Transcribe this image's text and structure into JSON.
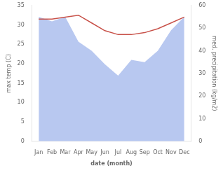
{
  "chart_data": {
    "type": "line",
    "xlabel": "date (month)",
    "ylabel": "max temp (C)",
    "y2label": "med. precipitation (kg/m2)",
    "categories": [
      "Jan",
      "Feb",
      "Mar",
      "Apr",
      "May",
      "Jun",
      "Jul",
      "Aug",
      "Sep",
      "Oct",
      "Nov",
      "Dec"
    ],
    "series": [
      {
        "type": "area",
        "color": "#b8c8f0",
        "axis": "y2",
        "values": [
          55.0,
          53.0,
          55.0,
          44.0,
          40.0,
          34.0,
          29.0,
          36.0,
          35.0,
          40.0,
          49.0,
          55.0
        ]
      },
      {
        "type": "line",
        "color": "#c8524a",
        "values": [
          31.5,
          31.5,
          32.0,
          32.5,
          30.5,
          28.5,
          27.5,
          27.5,
          28.0,
          29.0,
          30.5,
          32.0
        ]
      }
    ],
    "ylim": [
      0,
      35
    ],
    "yticks": [
      0,
      5,
      10,
      15,
      20,
      25,
      30,
      35
    ],
    "y2lim": [
      0,
      60
    ],
    "y2ticks": [
      0,
      10,
      20,
      30,
      40,
      50,
      60
    ],
    "grid": false
  }
}
